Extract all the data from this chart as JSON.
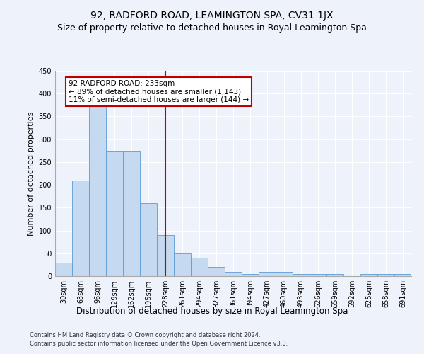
{
  "title": "92, RADFORD ROAD, LEAMINGTON SPA, CV31 1JX",
  "subtitle": "Size of property relative to detached houses in Royal Leamington Spa",
  "xlabel": "Distribution of detached houses by size in Royal Leamington Spa",
  "ylabel": "Number of detached properties",
  "footer_line1": "Contains HM Land Registry data © Crown copyright and database right 2024.",
  "footer_line2": "Contains public sector information licensed under the Open Government Licence v3.0.",
  "bin_labels": [
    "30sqm",
    "63sqm",
    "96sqm",
    "129sqm",
    "162sqm",
    "195sqm",
    "228sqm",
    "261sqm",
    "294sqm",
    "327sqm",
    "361sqm",
    "394sqm",
    "427sqm",
    "460sqm",
    "493sqm",
    "526sqm",
    "559sqm",
    "592sqm",
    "625sqm",
    "658sqm",
    "691sqm"
  ],
  "bar_values": [
    30,
    210,
    375,
    275,
    275,
    160,
    90,
    50,
    40,
    20,
    10,
    5,
    10,
    10,
    5,
    5,
    5,
    0,
    5,
    5,
    5
  ],
  "bar_color": "#c5d9f1",
  "bar_edge_color": "#5b9bd5",
  "vline_x_index": 6,
  "vline_color": "#c00000",
  "annotation_line1": "92 RADFORD ROAD: 233sqm",
  "annotation_line2": "← 89% of detached houses are smaller (1,143)",
  "annotation_line3": "11% of semi-detached houses are larger (144) →",
  "annotation_box_color": "#ffffff",
  "annotation_box_edge": "#c00000",
  "annotation_fontsize": 7.5,
  "ylim": [
    0,
    450
  ],
  "yticks": [
    0,
    50,
    100,
    150,
    200,
    250,
    300,
    350,
    400,
    450
  ],
  "background_color": "#eef2fb",
  "grid_color": "#ffffff",
  "title_fontsize": 10,
  "subtitle_fontsize": 9,
  "ylabel_fontsize": 8,
  "xlabel_fontsize": 8.5,
  "tick_labelsize": 7
}
